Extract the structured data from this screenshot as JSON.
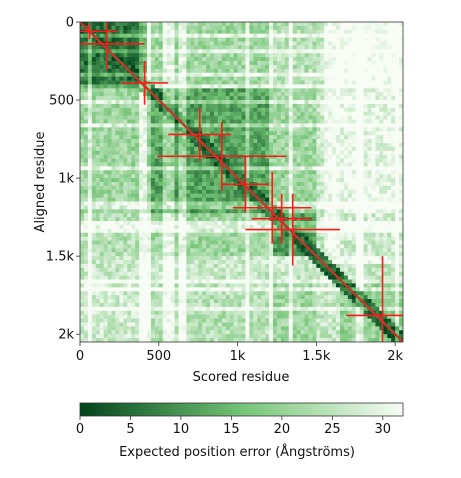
{
  "chart_data": {
    "type": "heatmap",
    "title": "",
    "xlabel": "Scored residue",
    "ylabel": "Aligned residue",
    "xlim": [
      0,
      2050
    ],
    "ylim": [
      0,
      2050
    ],
    "x_ticks": [
      0,
      500,
      1000,
      1500,
      2000
    ],
    "x_tick_labels": [
      "0",
      "500",
      "1k",
      "1.5k",
      "2k"
    ],
    "y_ticks": [
      0,
      500,
      1000,
      1500,
      2000
    ],
    "y_tick_labels": [
      "0",
      "500",
      "1k",
      "1.5k",
      "2k"
    ],
    "colorbar": {
      "label": "Expected position error (Ångströms)",
      "min": 0,
      "max": 32,
      "ticks": [
        0,
        5,
        10,
        15,
        20,
        25,
        30
      ],
      "tick_labels": [
        "0",
        "5",
        "10",
        "15",
        "20",
        "25",
        "30"
      ],
      "color_low": "#00441b",
      "color_mid": "#74c476",
      "color_high": "#f7fcf5"
    },
    "diagonal_color": "#c0392b",
    "domain_blocks": [
      {
        "start": 0,
        "end": 420,
        "error": 6
      },
      {
        "start": 420,
        "end": 1230,
        "error": 12
      },
      {
        "start": 1230,
        "end": 1500,
        "error": 11
      },
      {
        "start": 1650,
        "end": 2050,
        "error": 20
      }
    ],
    "marker_color": "#ff1a1a",
    "markers": [
      {
        "x": 60,
        "y": 60,
        "half_width": 180,
        "half_height": 50
      },
      {
        "x": 170,
        "y": 140,
        "half_width": 240,
        "half_height": 170
      },
      {
        "x": 410,
        "y": 390,
        "half_width": 150,
        "half_height": 140
      },
      {
        "x": 760,
        "y": 720,
        "half_width": 200,
        "half_height": 170
      },
      {
        "x": 900,
        "y": 860,
        "half_width": 410,
        "half_height": 220
      },
      {
        "x": 1050,
        "y": 1040,
        "half_width": 150,
        "half_height": 180
      },
      {
        "x": 1220,
        "y": 1190,
        "half_width": 250,
        "half_height": 230
      },
      {
        "x": 1280,
        "y": 1260,
        "half_width": 190,
        "half_height": 160
      },
      {
        "x": 1350,
        "y": 1330,
        "half_width": 300,
        "half_height": 230
      },
      {
        "x": 1920,
        "y": 1880,
        "half_width": 230,
        "half_height": 380
      }
    ]
  }
}
